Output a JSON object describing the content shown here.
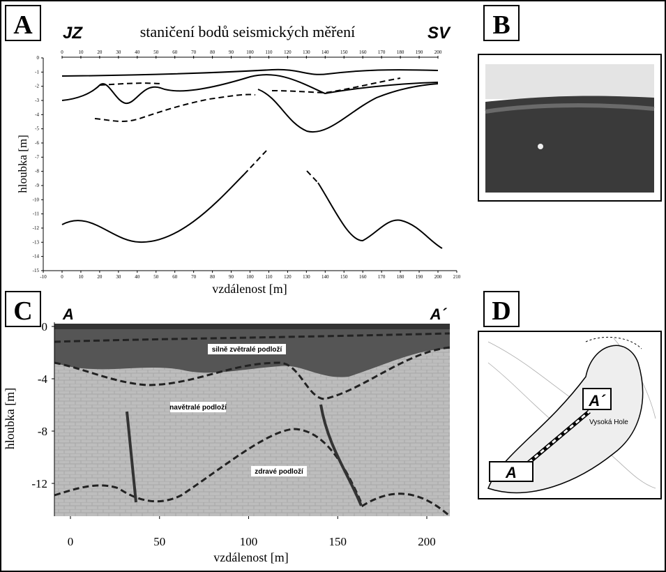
{
  "panels": [
    {
      "label": "A",
      "left_label": "JZ",
      "title": "staničení bodů seismických měření",
      "right_label": "SV",
      "top_ticks": [
        0,
        10,
        20,
        30,
        40,
        50,
        60,
        70,
        80,
        90,
        100,
        110,
        120,
        130,
        140,
        150,
        160,
        170,
        180,
        190,
        200
      ],
      "y_axis_label": "hloubka  [m]",
      "yticks": [
        0,
        -1,
        -2,
        -3,
        -4,
        -5,
        -6,
        -7,
        -8,
        -9,
        -10,
        -11,
        -12,
        -13,
        -14,
        -15
      ],
      "xticks": [
        -10,
        0,
        10,
        20,
        30,
        40,
        50,
        60,
        70,
        80,
        90,
        100,
        110,
        120,
        130,
        140,
        150,
        160,
        170,
        180,
        190,
        200,
        210
      ],
      "x_axis_label": "vzdálenost [m]"
    },
    {
      "label": "B"
    },
    {
      "label": "C",
      "left_label": "A",
      "right_label": "A´",
      "y_axis_label": "hloubka  [m]",
      "yticks": [
        0,
        -4,
        -8,
        -12
      ],
      "xticks": [
        0,
        50,
        100,
        150,
        200
      ],
      "x_axis_label": "vzdálenost [m]",
      "zones": [
        "silně zvětralé podloží",
        "navětralé podloží",
        "zdravé podloží"
      ]
    },
    {
      "label": "D",
      "markers": [
        "A´",
        "A"
      ],
      "place": "Vysoká Hole"
    }
  ]
}
